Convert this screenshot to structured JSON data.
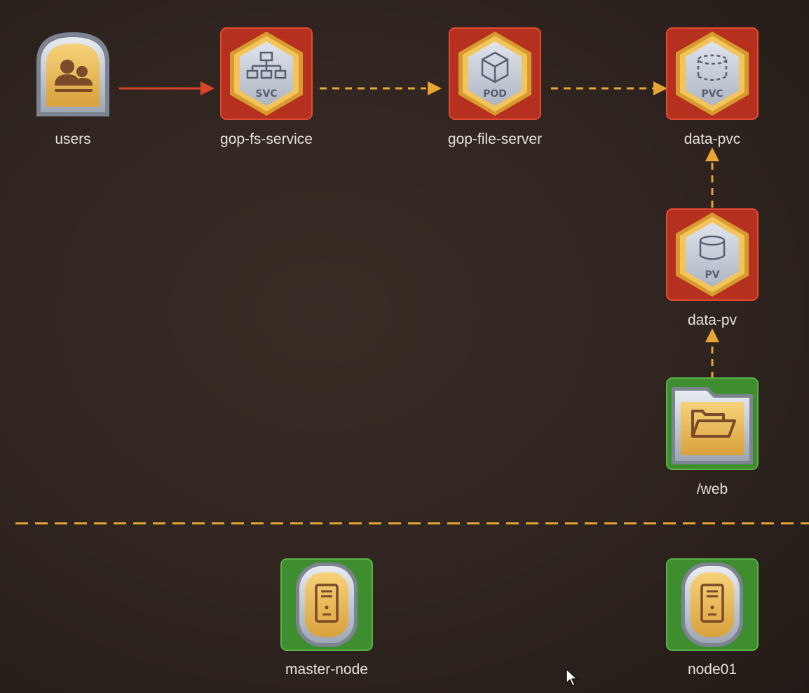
{
  "colors": {
    "background": "#2f241f",
    "k8s_frame": "#c0392b",
    "infra_frame": "#4aa13a",
    "gold": "#e3a82e",
    "active_arrow": "#d9442b",
    "dashed_arrow": "#e8a534",
    "label": "#e8e2d8"
  },
  "nodes": {
    "users": {
      "label": "users",
      "icon": "users-icon",
      "kind": "actor"
    },
    "gop_fs_service": {
      "label": "gop-fs-service",
      "icon": "network-icon",
      "badge": "SVC",
      "kind": "k8s"
    },
    "gop_file_server": {
      "label": "gop-file-server",
      "icon": "cube-icon",
      "badge": "POD",
      "kind": "k8s"
    },
    "data_pvc": {
      "label": "data-pvc",
      "icon": "dashed-cylinder-icon",
      "badge": "PVC",
      "kind": "k8s"
    },
    "data_pv": {
      "label": "data-pv",
      "icon": "cylinder-icon",
      "badge": "PV",
      "kind": "k8s"
    },
    "web": {
      "label": "/web",
      "icon": "folder-icon",
      "kind": "infra"
    },
    "master_node": {
      "label": "master-node",
      "icon": "server-icon",
      "kind": "infra"
    },
    "node01": {
      "label": "node01",
      "icon": "server-icon",
      "kind": "infra"
    }
  },
  "edges": [
    {
      "from": "users",
      "to": "gop-fs-service",
      "style": "solid"
    },
    {
      "from": "gop-fs-service",
      "to": "gop-file-server",
      "style": "dashed"
    },
    {
      "from": "gop-file-server",
      "to": "data-pvc",
      "style": "dashed"
    },
    {
      "from": "data-pv",
      "to": "data-pvc",
      "style": "dashed"
    },
    {
      "from": "/web",
      "to": "data-pv",
      "style": "dashed"
    }
  ]
}
